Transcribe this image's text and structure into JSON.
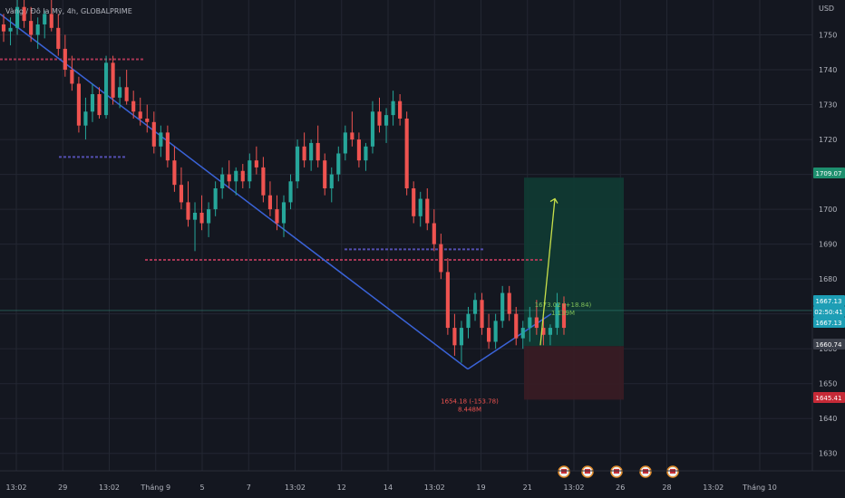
{
  "header": {
    "symbol_line": "Vàng / Đô la Mỹ, 4h, GLOBALPRIME",
    "currency": "USD"
  },
  "colors": {
    "background": "#141720",
    "up": "#26a69a",
    "down": "#ef5350",
    "trend": "#3a63d8",
    "target_zone": "#0f3b33",
    "stop_zone": "#3a1c24",
    "arrow": "#c8e04a"
  },
  "chart_data": {
    "type": "candlestick",
    "y_axis": {
      "min": 1625,
      "max": 1760,
      "ticks": [
        1750,
        1740,
        1730,
        1720,
        1710,
        1700,
        1690,
        1680,
        1670,
        1660,
        1650,
        1640,
        1630
      ]
    },
    "x_axis": {
      "labels": [
        "13:02",
        "29",
        "13:02",
        "Tháng 9",
        "5",
        "7",
        "13:02",
        "12",
        "14",
        "13:02",
        "19",
        "21",
        "13:02",
        "26",
        "28",
        "13:02",
        "Tháng 10"
      ]
    },
    "price_badges": [
      {
        "value": "1709.07",
        "color": "#1d8f6e"
      },
      {
        "value": "1667.13",
        "color": "#1d9eb5"
      },
      {
        "value": "02:50:41",
        "color": "#1d9eb5"
      },
      {
        "value": "1667.13",
        "color": "#1d9eb5"
      },
      {
        "value": "1660.74",
        "color": "#3b3f4a"
      },
      {
        "value": "1645.41",
        "color": "#c62a37"
      }
    ],
    "annotations": [
      {
        "text": "1654.18 (-153.78)",
        "color": "#ef5350",
        "price": 1654.18
      },
      {
        "text": "8.448M",
        "color": "#ef5350"
      },
      {
        "text": "1673.02 (+18.84)",
        "color": "#7fbf58",
        "price": 1673.02
      },
      {
        "text": "1.139M",
        "color": "#7fbf58"
      }
    ],
    "horizontal_levels": [
      {
        "price": 1743.0,
        "color": "#b83a5a"
      },
      {
        "price": 1715.0,
        "color": "#5a55c0"
      },
      {
        "price": 1685.5,
        "color": "#b83a5a"
      },
      {
        "price": 1688.5,
        "color": "#5a55c0"
      },
      {
        "price": 1671.0,
        "color": "#2f7f73"
      }
    ],
    "trend_lines": [
      {
        "from_price": 1756,
        "to_price": 1654.18
      },
      {
        "from_price": 1654.18,
        "to_price": 1670
      }
    ],
    "position": {
      "entry": 1660.74,
      "target": 1709.07,
      "stop": 1645.41
    },
    "candles": [
      [
        1753,
        1756,
        1748,
        1751
      ],
      [
        1751,
        1755,
        1747,
        1752
      ],
      [
        1752,
        1760,
        1750,
        1758
      ],
      [
        1758,
        1761,
        1752,
        1754
      ],
      [
        1754,
        1758,
        1748,
        1750
      ],
      [
        1750,
        1755,
        1746,
        1753
      ],
      [
        1753,
        1757,
        1749,
        1756
      ],
      [
        1756,
        1760,
        1751,
        1752
      ],
      [
        1752,
        1756,
        1744,
        1746
      ],
      [
        1746,
        1750,
        1738,
        1740
      ],
      [
        1740,
        1744,
        1734,
        1736
      ],
      [
        1736,
        1738,
        1722,
        1724
      ],
      [
        1724,
        1732,
        1720,
        1728
      ],
      [
        1728,
        1736,
        1725,
        1733
      ],
      [
        1733,
        1735,
        1726,
        1727
      ],
      [
        1727,
        1744,
        1726,
        1742
      ],
      [
        1742,
        1744,
        1730,
        1732
      ],
      [
        1732,
        1738,
        1729,
        1735
      ],
      [
        1735,
        1740,
        1730,
        1731
      ],
      [
        1731,
        1734,
        1726,
        1728
      ],
      [
        1728,
        1732,
        1724,
        1726
      ],
      [
        1726,
        1730,
        1722,
        1725
      ],
      [
        1725,
        1728,
        1716,
        1718
      ],
      [
        1718,
        1724,
        1715,
        1722
      ],
      [
        1722,
        1724,
        1712,
        1714
      ],
      [
        1714,
        1718,
        1705,
        1707
      ],
      [
        1707,
        1712,
        1700,
        1702
      ],
      [
        1702,
        1708,
        1695,
        1697
      ],
      [
        1697,
        1702,
        1688,
        1699
      ],
      [
        1699,
        1704,
        1694,
        1696
      ],
      [
        1696,
        1702,
        1692,
        1700
      ],
      [
        1700,
        1708,
        1698,
        1706
      ],
      [
        1706,
        1712,
        1703,
        1710
      ],
      [
        1710,
        1714,
        1706,
        1708
      ],
      [
        1708,
        1712,
        1704,
        1711
      ],
      [
        1711,
        1713,
        1706,
        1708
      ],
      [
        1708,
        1716,
        1706,
        1714
      ],
      [
        1714,
        1718,
        1710,
        1712
      ],
      [
        1712,
        1715,
        1702,
        1704
      ],
      [
        1704,
        1708,
        1698,
        1700
      ],
      [
        1700,
        1704,
        1694,
        1696
      ],
      [
        1696,
        1704,
        1692,
        1702
      ],
      [
        1702,
        1710,
        1700,
        1708
      ],
      [
        1708,
        1720,
        1706,
        1718
      ],
      [
        1718,
        1722,
        1712,
        1714
      ],
      [
        1714,
        1720,
        1711,
        1719
      ],
      [
        1719,
        1724,
        1712,
        1714
      ],
      [
        1714,
        1716,
        1704,
        1706
      ],
      [
        1706,
        1712,
        1702,
        1710
      ],
      [
        1710,
        1718,
        1708,
        1716
      ],
      [
        1716,
        1724,
        1714,
        1722
      ],
      [
        1722,
        1728,
        1718,
        1720
      ],
      [
        1720,
        1722,
        1712,
        1714
      ],
      [
        1714,
        1719,
        1711,
        1718
      ],
      [
        1718,
        1731,
        1716,
        1728
      ],
      [
        1728,
        1732,
        1722,
        1724
      ],
      [
        1724,
        1729,
        1719,
        1727
      ],
      [
        1727,
        1734,
        1724,
        1731
      ],
      [
        1731,
        1733,
        1724,
        1726
      ],
      [
        1726,
        1728,
        1704,
        1706
      ],
      [
        1706,
        1708,
        1696,
        1698
      ],
      [
        1698,
        1705,
        1695,
        1703
      ],
      [
        1703,
        1706,
        1694,
        1696
      ],
      [
        1696,
        1700,
        1688,
        1690
      ],
      [
        1690,
        1693,
        1680,
        1682
      ],
      [
        1682,
        1686,
        1664,
        1666
      ],
      [
        1666,
        1670,
        1658,
        1661
      ],
      [
        1661,
        1668,
        1656,
        1666
      ],
      [
        1666,
        1672,
        1663,
        1670
      ],
      [
        1670,
        1676,
        1668,
        1674
      ],
      [
        1674,
        1676,
        1664,
        1666
      ],
      [
        1666,
        1670,
        1660,
        1662
      ],
      [
        1662,
        1670,
        1660,
        1668
      ],
      [
        1668,
        1678,
        1666,
        1676
      ],
      [
        1676,
        1678,
        1668,
        1670
      ],
      [
        1670,
        1672,
        1661,
        1663
      ],
      [
        1663,
        1668,
        1660,
        1666
      ],
      [
        1666,
        1672,
        1662,
        1669
      ],
      [
        1669,
        1674,
        1664,
        1666
      ],
      [
        1666,
        1669,
        1661,
        1664
      ],
      [
        1664,
        1667,
        1661,
        1666
      ],
      [
        1666,
        1676,
        1664,
        1673
      ],
      [
        1673,
        1675,
        1664,
        1666
      ]
    ]
  }
}
